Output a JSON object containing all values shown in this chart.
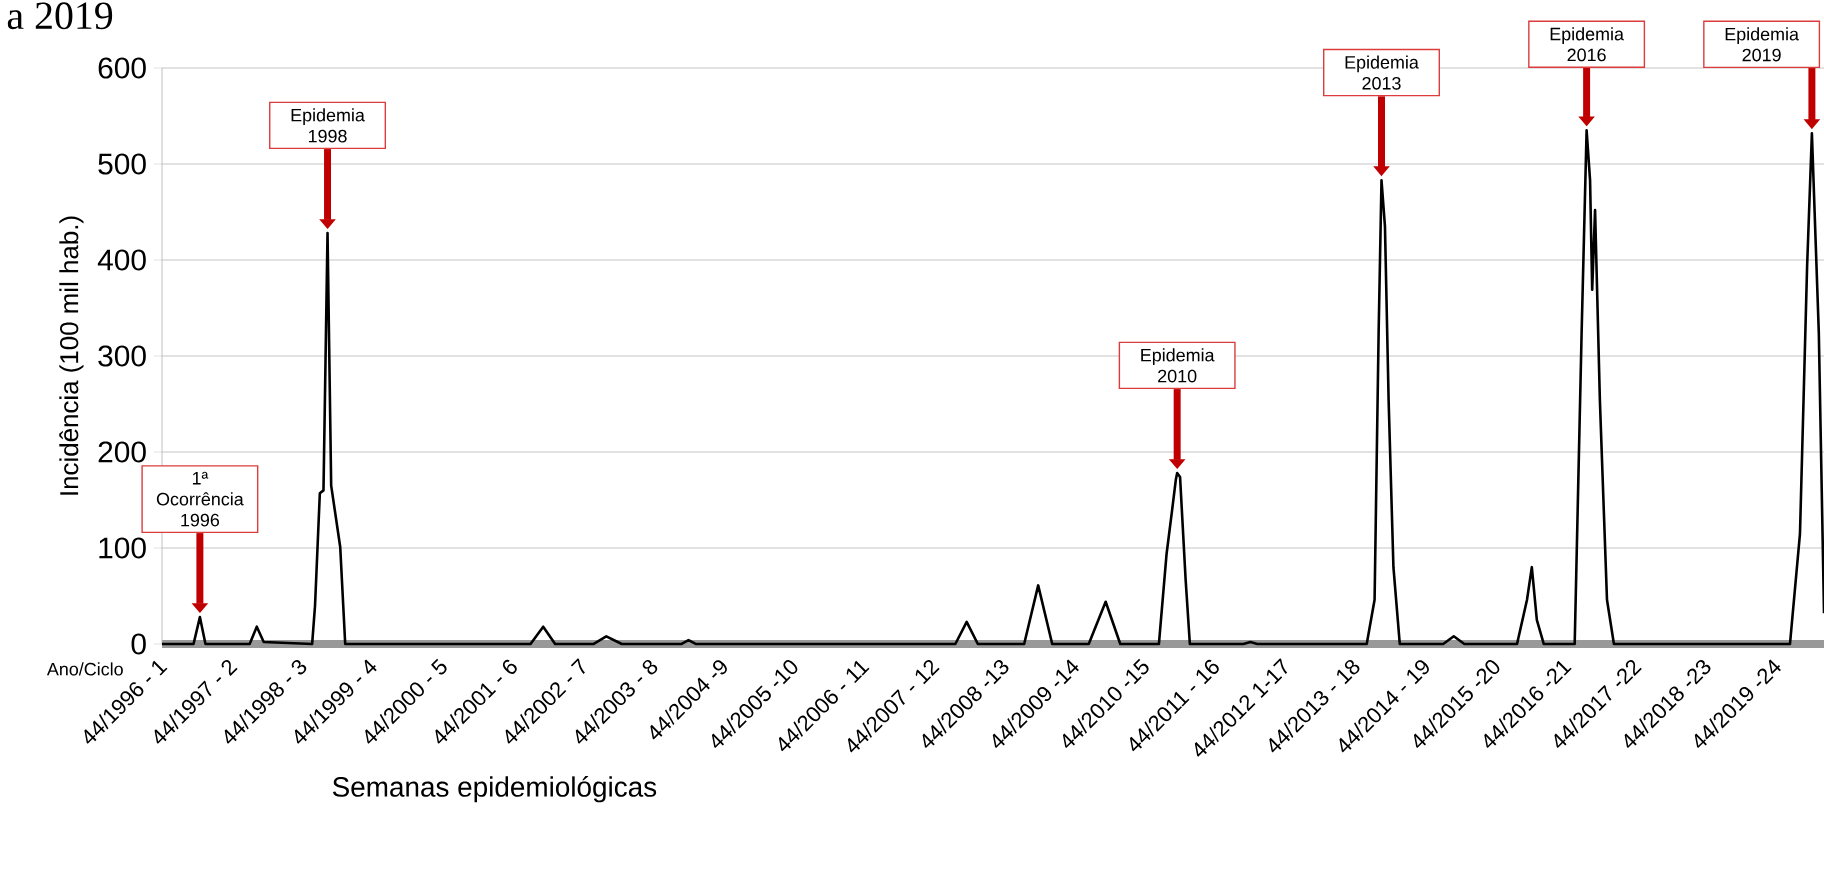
{
  "chart_data": {
    "type": "line",
    "title": "a 2019",
    "xlabel": "Semanas epidemiológicas",
    "ylabel": "Incidência (100 mil hab.)",
    "x": [
      "1996-11-01",
      "1997-04-14",
      "1997-05-17",
      "1997-06-15",
      "1998-01-31",
      "1998-03-09",
      "1998-04-14",
      "1998-12-22",
      "1999-01-06",
      "1999-01-31",
      "1999-02-19",
      "1999-03-12",
      "1999-03-31",
      "1999-05-17",
      "1999-06-12",
      "2002-01-31",
      "2002-04-07",
      "2002-06-08",
      "2002-12-26",
      "2003-03-01",
      "2003-05-21",
      "2004-03-27",
      "2004-05-02",
      "2004-06-08",
      "2008-02-19",
      "2008-04-18",
      "2008-06-15",
      "2009-02-11",
      "2009-04-25",
      "2009-07-07",
      "2010-01-13",
      "2010-04-11",
      "2010-06-26",
      "2011-01-13",
      "2011-02-22",
      "2011-03-23",
      "2011-04-11",
      "2011-04-18",
      "2011-05-03",
      "2011-06-01",
      "2011-06-23",
      "2012-03-27",
      "2012-05-03",
      "2012-06-08",
      "2013-12-29",
      "2014-02-08",
      "2014-03-01",
      "2014-03-16",
      "2014-04-03",
      "2014-04-22",
      "2014-05-17",
      "2014-06-19",
      "2015-01-31",
      "2015-03-27",
      "2015-05-21",
      "2016-02-19",
      "2016-04-11",
      "2016-05-06",
      "2016-06-01",
      "2016-07-07",
      "2016-12-15",
      "2017-01-20",
      "2017-02-15",
      "2017-03-05",
      "2017-03-16",
      "2017-03-31",
      "2017-04-25",
      "2017-06-01",
      "2017-07-07",
      "2020-01-09",
      "2020-03-01",
      "2020-04-07",
      "2020-05-02",
      "2020-06-07",
      "2020-07-04"
    ],
    "series": [
      {
        "color": "#000000",
        "values": [
          0,
          0,
          28,
          0,
          0,
          18,
          2,
          0,
          40,
          157,
          160,
          428,
          165,
          101,
          0,
          0,
          18,
          0,
          0,
          8,
          0,
          0,
          4,
          0,
          0,
          23,
          0,
          0,
          61,
          0,
          0,
          44,
          0,
          0,
          94,
          140,
          171,
          178,
          174,
          67,
          0,
          0,
          2,
          0,
          0,
          46,
          324,
          483,
          435,
          254,
          80,
          0,
          0,
          8,
          0,
          0,
          46,
          80,
          25,
          0,
          0,
          324,
          535,
          483,
          369,
          452,
          254,
          46,
          0,
          0,
          115,
          393,
          532,
          324,
          32
        ]
      }
    ],
    "xlim": [
      "1996-11-01",
      "2020-07-04"
    ],
    "xticks": [
      {
        "value": "1996-11-01",
        "label": "44/1996 - 1"
      },
      {
        "value": "1997-11-01",
        "label": "44/1997 - 2"
      },
      {
        "value": "1998-11-01",
        "label": "44/1998 - 3"
      },
      {
        "value": "1999-11-01",
        "label": "44/1999 - 4"
      },
      {
        "value": "2000-11-01",
        "label": "44/2000 - 5"
      },
      {
        "value": "2001-11-01",
        "label": "44/2001 - 6"
      },
      {
        "value": "2002-11-01",
        "label": "44/2002 - 7"
      },
      {
        "value": "2003-11-01",
        "label": "44/2003 - 8"
      },
      {
        "value": "2004-11-01",
        "label": "44/2004 -9"
      },
      {
        "value": "2005-11-01",
        "label": "44/2005 -10"
      },
      {
        "value": "2006-11-01",
        "label": "44/2006 - 11"
      },
      {
        "value": "2007-11-01",
        "label": "44/2007 - 12"
      },
      {
        "value": "2008-11-01",
        "label": "44/2008 -13"
      },
      {
        "value": "2009-11-01",
        "label": "44/2009 -14"
      },
      {
        "value": "2010-11-01",
        "label": "44/2010 -15"
      },
      {
        "value": "2011-11-01",
        "label": "44/2011 - 16"
      },
      {
        "value": "2012-11-01",
        "label": "44/2012 1-17"
      },
      {
        "value": "2013-11-01",
        "label": "44/2013 - 18"
      },
      {
        "value": "2014-11-01",
        "label": "44/2014 - 19"
      },
      {
        "value": "2015-11-01",
        "label": "44/2015 -20"
      },
      {
        "value": "2016-11-01",
        "label": "44/2016 -21"
      },
      {
        "value": "2017-11-01",
        "label": "44/2017 -22"
      },
      {
        "value": "2018-11-01",
        "label": "44/2018 -23"
      },
      {
        "value": "2019-11-01",
        "label": "44/2019 -24"
      }
    ],
    "ylim": [
      0,
      600
    ],
    "yticks": [
      0,
      100,
      200,
      300,
      400,
      500,
      600
    ],
    "grid": "y",
    "line_style": "solid",
    "annotations": [
      {
        "text": "1ª Ocorrência 1996",
        "x": "1997-05-17",
        "y": 28
      },
      {
        "text": "Epidemia 1998",
        "x": "1999-03-12",
        "y": 428
      },
      {
        "text": "Epidemia 2010",
        "x": "2011-04-18",
        "y": 178
      },
      {
        "text": "Epidemia 2013",
        "x": "2014-03-16",
        "y": 483
      },
      {
        "text": "Epidemia 2016",
        "x": "2017-02-15",
        "y": 535
      },
      {
        "text": "Epidemia 2019",
        "x": "2020-05-02",
        "y": 532
      },
      "Ano/Ciclo"
    ]
  }
}
